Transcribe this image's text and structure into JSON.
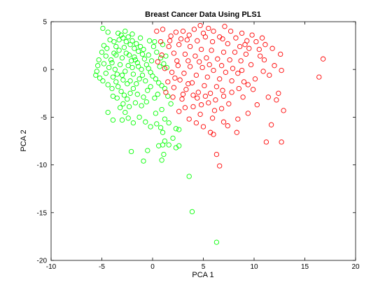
{
  "chart_data": {
    "type": "scatter",
    "title": "Breast Cancer Data Using PLS1",
    "xlabel": "PCA 1",
    "ylabel": "PCA 2",
    "xlim": [
      -10,
      20
    ],
    "ylim": [
      -20,
      5
    ],
    "xticks": [
      -10,
      -5,
      0,
      5,
      10,
      15,
      20
    ],
    "yticks": [
      5,
      0,
      -5,
      -10,
      -15,
      -20
    ],
    "grid": false,
    "series": [
      {
        "color": "#00ff00",
        "marker": "open-circle",
        "points": [
          [
            -4.9,
            4.3
          ],
          [
            -4.4,
            3.9
          ],
          [
            -4.2,
            3.1
          ],
          [
            -4.8,
            2.5
          ],
          [
            -4.5,
            2.2
          ],
          [
            -5.0,
            1.8
          ],
          [
            -4.6,
            1.4
          ],
          [
            -5.3,
            1.0
          ],
          [
            -4.8,
            0.6
          ],
          [
            -5.4,
            0.4
          ],
          [
            -5.5,
            -0.2
          ],
          [
            -5.6,
            -0.6
          ],
          [
            -5.2,
            -0.9
          ],
          [
            -4.9,
            -1.2
          ],
          [
            -4.6,
            -0.4
          ],
          [
            -4.3,
            0.2
          ],
          [
            -4.1,
            1.0
          ],
          [
            -3.8,
            1.7
          ],
          [
            -3.6,
            2.4
          ],
          [
            -3.3,
            3.1
          ],
          [
            -3.1,
            3.6
          ],
          [
            -2.9,
            3.3
          ],
          [
            -2.6,
            2.9
          ],
          [
            -2.4,
            3.4
          ],
          [
            -2.2,
            2.6
          ],
          [
            -2.0,
            3.0
          ],
          [
            -1.8,
            2.2
          ],
          [
            -1.6,
            2.7
          ],
          [
            -1.4,
            1.9
          ],
          [
            -1.2,
            2.4
          ],
          [
            -1.0,
            1.6
          ],
          [
            -0.8,
            1.1
          ],
          [
            -0.6,
            0.5
          ],
          [
            -0.4,
            0.1
          ],
          [
            -0.2,
            -0.3
          ],
          [
            0.0,
            -0.7
          ],
          [
            0.3,
            -1.0
          ],
          [
            0.6,
            -1.4
          ],
          [
            0.9,
            -1.7
          ],
          [
            1.2,
            -2.0
          ],
          [
            -0.3,
            3.0
          ],
          [
            0.1,
            2.4
          ],
          [
            0.4,
            1.8
          ],
          [
            0.8,
            1.2
          ],
          [
            1.1,
            0.6
          ],
          [
            1.4,
            0.2
          ],
          [
            -3.9,
            -0.8
          ],
          [
            -3.6,
            -1.3
          ],
          [
            -3.4,
            -1.8
          ],
          [
            -3.1,
            -2.3
          ],
          [
            -2.8,
            -2.7
          ],
          [
            -2.5,
            -3.1
          ],
          [
            -2.2,
            -2.5
          ],
          [
            -1.9,
            -2.0
          ],
          [
            -1.6,
            -1.5
          ],
          [
            -1.3,
            -1.0
          ],
          [
            -1.0,
            -0.6
          ],
          [
            -2.7,
            -0.2
          ],
          [
            -2.4,
            0.4
          ],
          [
            -2.1,
            0.9
          ],
          [
            -1.8,
            1.3
          ],
          [
            -1.5,
            0.7
          ],
          [
            -3.2,
            0.5
          ],
          [
            -3.0,
            1.2
          ],
          [
            -2.6,
            1.7
          ],
          [
            -2.3,
            1.5
          ],
          [
            -1.9,
            -0.5
          ],
          [
            -2.9,
            -1.1
          ],
          [
            -3.3,
            2.0
          ],
          [
            -3.7,
            0.0
          ],
          [
            -4.0,
            -2.0
          ],
          [
            -4.4,
            -1.6
          ],
          [
            -3.8,
            2.9
          ],
          [
            -2.0,
            3.7
          ],
          [
            -1.2,
            3.3
          ],
          [
            -2.7,
            4.0
          ],
          [
            -3.4,
            3.8
          ],
          [
            -1.5,
            -2.6
          ],
          [
            -0.9,
            -2.9
          ],
          [
            -0.5,
            -2.2
          ],
          [
            -0.2,
            -1.8
          ],
          [
            0.5,
            -2.6
          ],
          [
            0.2,
            -3.0
          ],
          [
            -0.6,
            -3.4
          ],
          [
            -1.1,
            -3.8
          ],
          [
            -1.7,
            -3.5
          ],
          [
            -2.3,
            -3.9
          ],
          [
            -2.9,
            -3.6
          ],
          [
            -3.5,
            -3.0
          ],
          [
            -3.9,
            -2.8
          ],
          [
            -3.2,
            -4.0
          ],
          [
            -2.7,
            -4.5
          ],
          [
            -2.4,
            -5.1
          ],
          [
            -3.0,
            -5.3
          ],
          [
            -3.9,
            -5.3
          ],
          [
            -4.4,
            -4.5
          ],
          [
            -1.3,
            -5.0
          ],
          [
            -0.7,
            -5.5
          ],
          [
            -1.9,
            -5.6
          ],
          [
            1.5,
            -2.8
          ],
          [
            1.8,
            -3.6
          ],
          [
            0.9,
            -4.2
          ],
          [
            0.3,
            -4.6
          ],
          [
            1.2,
            -5.2
          ],
          [
            1.6,
            -5.6
          ],
          [
            0.4,
            -5.7
          ],
          [
            -0.2,
            -6.0
          ],
          [
            0.8,
            -6.1
          ],
          [
            2.3,
            -6.2
          ],
          [
            2.6,
            -6.3
          ],
          [
            1.0,
            -6.6
          ],
          [
            2.0,
            -7.2
          ],
          [
            1.2,
            -7.5
          ],
          [
            0.6,
            -8.0
          ],
          [
            1.0,
            -7.9
          ],
          [
            1.6,
            -7.9
          ],
          [
            2.6,
            -8.0
          ],
          [
            2.3,
            -8.2
          ],
          [
            -0.5,
            -8.5
          ],
          [
            -2.1,
            -8.6
          ],
          [
            1.1,
            -8.9
          ],
          [
            0.9,
            -9.5
          ],
          [
            -0.9,
            -9.6
          ],
          [
            3.6,
            -11.2
          ],
          [
            3.9,
            -14.9
          ],
          [
            6.3,
            -18.1
          ],
          [
            -1.4,
            0.3
          ],
          [
            -2.5,
            -1.5
          ],
          [
            -3.5,
            -0.5
          ],
          [
            -0.9,
            2.1
          ],
          [
            -1.7,
            1.0
          ],
          [
            -2.8,
            2.3
          ],
          [
            -4.0,
            0.7
          ],
          [
            -0.1,
            0.9
          ],
          [
            0.7,
            0.3
          ],
          [
            1.3,
            1.4
          ],
          [
            1.0,
            2.6
          ],
          [
            0.2,
            2.9
          ],
          [
            -0.7,
            -1.2
          ],
          [
            -2.2,
            -1.2
          ],
          [
            -3.0,
            -0.6
          ],
          [
            -2.0,
            0.2
          ],
          [
            -1.1,
            0.0
          ],
          [
            -0.4,
            1.5
          ],
          [
            -3.6,
            1.5
          ]
        ]
      },
      {
        "color": "#ff0000",
        "marker": "open-circle",
        "points": [
          [
            0.4,
            4.0
          ],
          [
            1.0,
            4.2
          ],
          [
            1.8,
            3.5
          ],
          [
            2.3,
            3.9
          ],
          [
            3.0,
            4.0
          ],
          [
            3.6,
            3.6
          ],
          [
            4.1,
            4.2
          ],
          [
            4.7,
            4.6
          ],
          [
            5.0,
            3.8
          ],
          [
            5.5,
            4.3
          ],
          [
            6.0,
            4.0
          ],
          [
            6.6,
            3.4
          ],
          [
            7.1,
            4.5
          ],
          [
            7.7,
            4.0
          ],
          [
            8.2,
            3.3
          ],
          [
            8.8,
            3.8
          ],
          [
            9.3,
            3.0
          ],
          [
            9.8,
            3.6
          ],
          [
            10.2,
            2.9
          ],
          [
            10.8,
            3.3
          ],
          [
            11.1,
            2.6
          ],
          [
            10.5,
            2.1
          ],
          [
            11.8,
            2.2
          ],
          [
            12.6,
            1.6
          ],
          [
            11.0,
            1.0
          ],
          [
            12.0,
            0.4
          ],
          [
            12.7,
            -0.1
          ],
          [
            11.5,
            -0.6
          ],
          [
            10.1,
            -1.0
          ],
          [
            9.4,
            -1.6
          ],
          [
            8.5,
            -2.0
          ],
          [
            7.8,
            -2.4
          ],
          [
            7.0,
            -2.8
          ],
          [
            6.2,
            -3.2
          ],
          [
            5.5,
            -3.5
          ],
          [
            4.8,
            -3.7
          ],
          [
            4.0,
            -3.9
          ],
          [
            3.2,
            -4.0
          ],
          [
            2.6,
            -4.4
          ],
          [
            3.6,
            -5.2
          ],
          [
            4.3,
            -5.6
          ],
          [
            5.0,
            -6.0
          ],
          [
            5.7,
            -6.6
          ],
          [
            6.0,
            -6.8
          ],
          [
            7.0,
            -5.5
          ],
          [
            7.4,
            -5.9
          ],
          [
            8.4,
            -5.2
          ],
          [
            8.3,
            -6.6
          ],
          [
            9.4,
            -4.6
          ],
          [
            10.3,
            -3.7
          ],
          [
            11.4,
            -2.9
          ],
          [
            12.4,
            -2.5
          ],
          [
            12.9,
            -4.3
          ],
          [
            12.2,
            -3.2
          ],
          [
            11.7,
            -5.8
          ],
          [
            11.2,
            -7.6
          ],
          [
            12.7,
            -7.6
          ],
          [
            6.3,
            -8.9
          ],
          [
            6.6,
            -10.1
          ],
          [
            16.8,
            1.1
          ],
          [
            16.4,
            -0.8
          ],
          [
            0.9,
            1.5
          ],
          [
            1.6,
            2.4
          ],
          [
            2.1,
            1.7
          ],
          [
            2.6,
            2.6
          ],
          [
            3.2,
            1.6
          ],
          [
            3.7,
            2.4
          ],
          [
            4.2,
            1.4
          ],
          [
            4.8,
            2.1
          ],
          [
            5.3,
            1.2
          ],
          [
            5.8,
            2.0
          ],
          [
            6.4,
            1.1
          ],
          [
            7.0,
            1.8
          ],
          [
            7.6,
            1.0
          ],
          [
            8.1,
            1.8
          ],
          [
            8.7,
            0.9
          ],
          [
            9.2,
            1.6
          ],
          [
            9.7,
            0.5
          ],
          [
            1.2,
            0.1
          ],
          [
            1.9,
            -0.3
          ],
          [
            2.5,
            0.4
          ],
          [
            3.1,
            -0.4
          ],
          [
            3.7,
            0.3
          ],
          [
            4.3,
            -0.6
          ],
          [
            4.9,
            0.2
          ],
          [
            5.4,
            -0.8
          ],
          [
            6.0,
            -0.1
          ],
          [
            6.6,
            -1.0
          ],
          [
            7.2,
            -0.3
          ],
          [
            7.8,
            -1.2
          ],
          [
            8.4,
            -0.4
          ],
          [
            9.0,
            -1.3
          ],
          [
            1.5,
            -1.3
          ],
          [
            2.1,
            -1.9
          ],
          [
            2.7,
            -1.1
          ],
          [
            3.3,
            -2.1
          ],
          [
            3.9,
            -1.4
          ],
          [
            4.5,
            -2.4
          ],
          [
            5.1,
            -1.7
          ],
          [
            5.7,
            -2.5
          ],
          [
            6.3,
            -1.8
          ],
          [
            6.9,
            -2.2
          ],
          [
            2.0,
            -2.9
          ],
          [
            2.9,
            -3.1
          ],
          [
            4.4,
            -3.0
          ],
          [
            5.2,
            -2.8
          ],
          [
            6.1,
            -4.3
          ],
          [
            4.7,
            -4.7
          ],
          [
            3.0,
            -2.6
          ],
          [
            1.7,
            3.0
          ],
          [
            2.8,
            3.2
          ],
          [
            4.4,
            3.0
          ],
          [
            5.9,
            2.9
          ],
          [
            7.4,
            2.7
          ],
          [
            8.6,
            2.4
          ],
          [
            9.5,
            2.2
          ],
          [
            10.6,
            1.4
          ],
          [
            10.9,
            -0.2
          ],
          [
            9.9,
            -2.1
          ],
          [
            8.9,
            -2.9
          ],
          [
            7.5,
            -3.6
          ],
          [
            6.8,
            -4.1
          ],
          [
            5.9,
            -5.1
          ],
          [
            1.3,
            -2.4
          ],
          [
            0.8,
            2.9
          ],
          [
            0.5,
            0.8
          ],
          [
            2.4,
            0.9
          ],
          [
            3.5,
            0.9
          ],
          [
            4.6,
            0.8
          ],
          [
            5.6,
            0.5
          ],
          [
            6.8,
            0.4
          ],
          [
            7.9,
            0.1
          ],
          [
            8.8,
            -0.1
          ],
          [
            3.4,
            3.1
          ],
          [
            5.2,
            3.4
          ],
          [
            6.9,
            3.2
          ],
          [
            9.1,
            2.6
          ],
          [
            2.2,
            -0.9
          ],
          [
            3.5,
            -1.5
          ],
          [
            4.0,
            -2.7
          ]
        ]
      }
    ]
  }
}
